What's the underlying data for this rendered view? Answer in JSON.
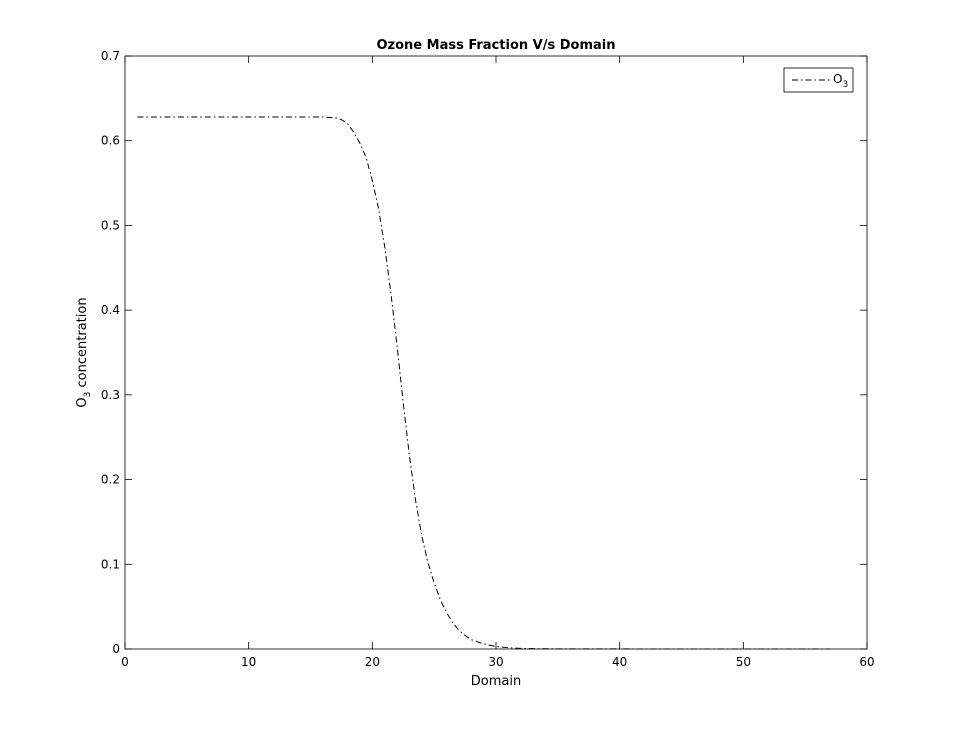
{
  "chart_data": {
    "type": "line",
    "title": "Ozone Mass Fraction V/s Domain",
    "xlabel": "Domain",
    "ylabel": {
      "main": "O",
      "sub": "3",
      "rest": " concentration"
    },
    "xlim": [
      0,
      60
    ],
    "ylim": [
      0,
      0.7
    ],
    "xticks": [
      0,
      10,
      20,
      30,
      40,
      50,
      60
    ],
    "yticks": [
      0,
      0.1,
      0.2,
      0.3,
      0.4,
      0.5,
      0.6,
      0.7
    ],
    "xtick_labels": [
      "0",
      "10",
      "20",
      "30",
      "40",
      "50",
      "60"
    ],
    "ytick_labels": [
      "0",
      "0.1",
      "0.2",
      "0.3",
      "0.4",
      "0.5",
      "0.6",
      "0.7"
    ],
    "grid": false,
    "legend": "top-right",
    "series": [
      {
        "name": {
          "main": "O",
          "sub": "3"
        },
        "color": "#000000",
        "line_style": "dash-dot",
        "x": [
          1,
          5,
          10,
          15,
          16,
          17,
          17.5,
          18,
          18.5,
          19,
          19.5,
          20,
          20.5,
          21,
          21.5,
          22,
          22.5,
          23,
          23.5,
          24,
          24.5,
          25,
          25.5,
          26,
          26.5,
          27,
          27.5,
          28,
          29,
          30,
          31,
          32,
          33,
          35,
          40,
          45,
          50,
          55,
          57
        ],
        "y": [
          0.628,
          0.628,
          0.628,
          0.628,
          0.628,
          0.627,
          0.625,
          0.62,
          0.61,
          0.597,
          0.58,
          0.553,
          0.52,
          0.475,
          0.42,
          0.358,
          0.29,
          0.228,
          0.175,
          0.133,
          0.102,
          0.078,
          0.058,
          0.043,
          0.031,
          0.022,
          0.016,
          0.011,
          0.006,
          0.003,
          0.0015,
          0.0008,
          0.0004,
          0.0002,
          0.0001,
          0,
          0,
          0,
          0
        ]
      }
    ]
  }
}
